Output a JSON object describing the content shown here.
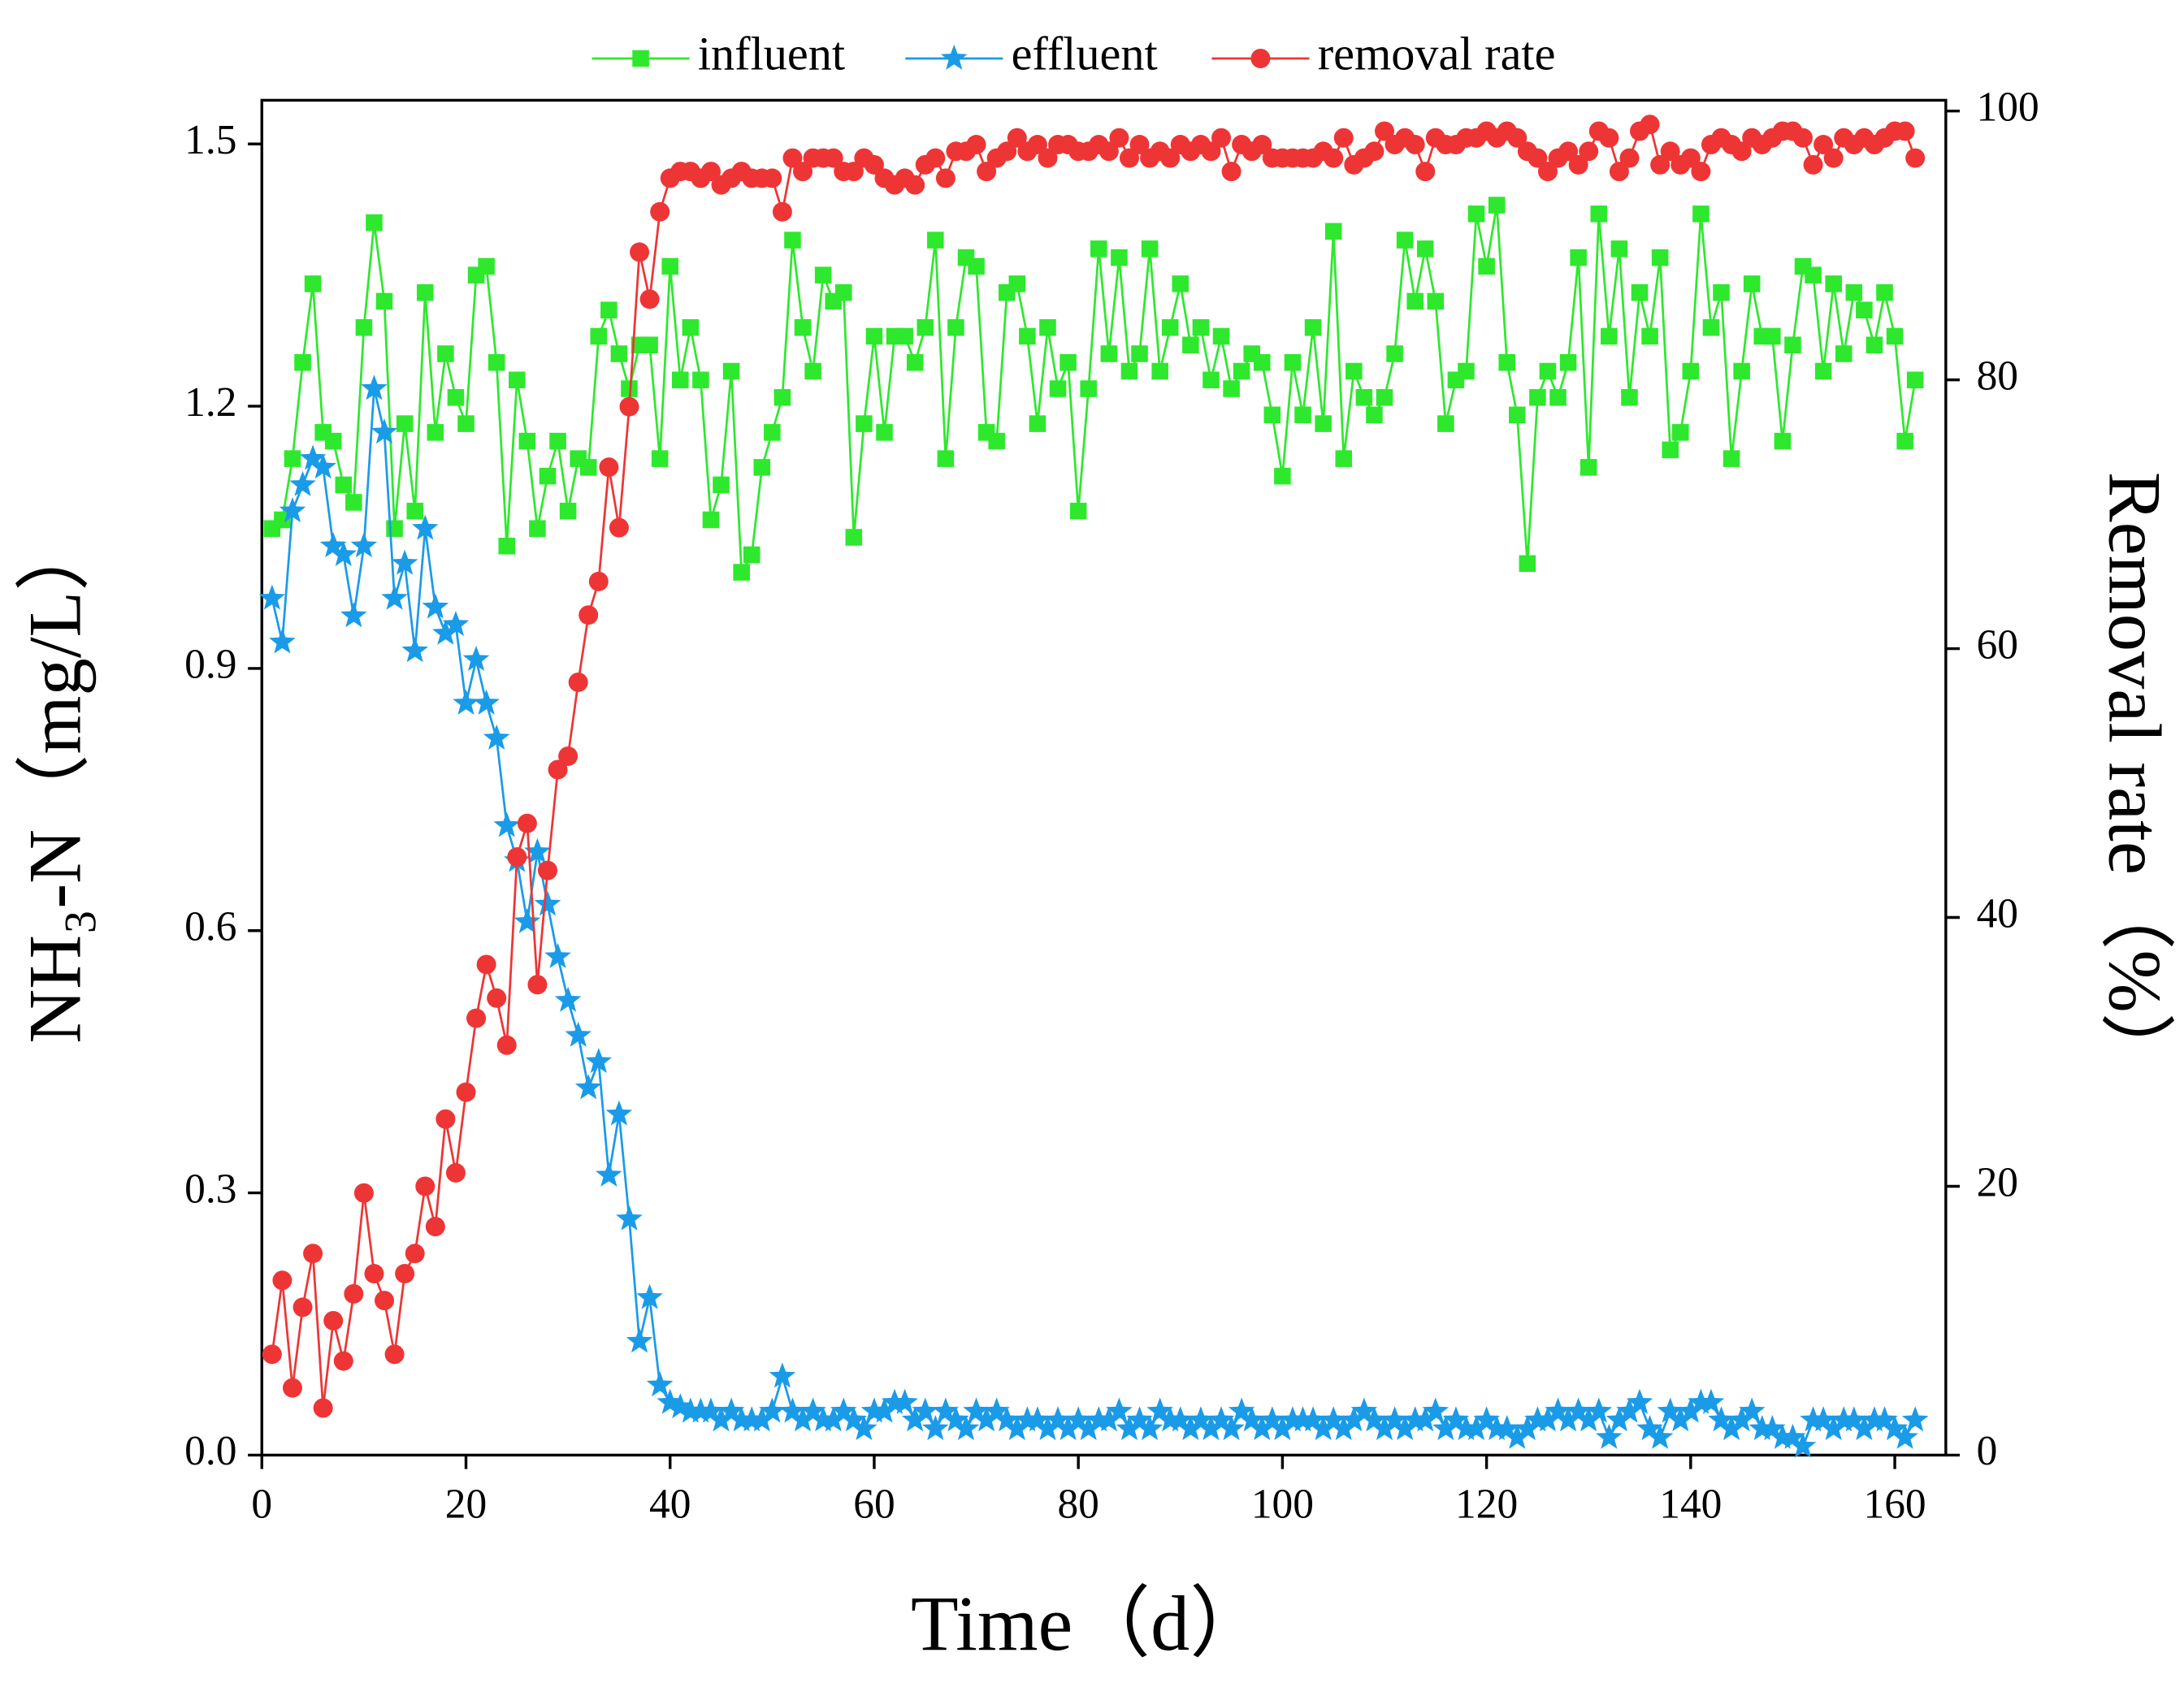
{
  "chart_data": {
    "type": "line",
    "xlabel": "Time（d）",
    "ylabel": "NH₃-N（mg/L）",
    "y2label": "Removal rate（%）",
    "xlim": [
      0,
      165
    ],
    "xticks": [
      0,
      20,
      40,
      60,
      80,
      100,
      120,
      140,
      160
    ],
    "ylim": [
      0,
      1.55
    ],
    "yticks": [
      {
        "value": 0,
        "label": "0.0"
      },
      {
        "value": 0.3,
        "label": "0.3"
      },
      {
        "value": 0.6,
        "label": "0.6"
      },
      {
        "value": 0.9,
        "label": "0.9"
      },
      {
        "value": 1.2,
        "label": "1.2"
      },
      {
        "value": 1.5,
        "label": "1.5"
      }
    ],
    "y2lim": [
      0,
      100.8
    ],
    "y2ticks": [
      0,
      20,
      40,
      60,
      80,
      100
    ],
    "legend": "top",
    "x": [
      1,
      2,
      3,
      4,
      5,
      6,
      7,
      8,
      9,
      10,
      11,
      12,
      13,
      14,
      15,
      16,
      17,
      18,
      19,
      20,
      21,
      22,
      23,
      24,
      25,
      26,
      27,
      28,
      29,
      30,
      31,
      32,
      33,
      34,
      35,
      36,
      37,
      38,
      39,
      40,
      41,
      42,
      43,
      44,
      45,
      46,
      47,
      48,
      49,
      50,
      51,
      52,
      53,
      54,
      55,
      56,
      57,
      58,
      59,
      60,
      61,
      62,
      63,
      64,
      65,
      66,
      67,
      68,
      69,
      70,
      71,
      72,
      73,
      74,
      75,
      76,
      77,
      78,
      79,
      80,
      81,
      82,
      83,
      84,
      85,
      86,
      87,
      88,
      89,
      90,
      91,
      92,
      93,
      94,
      95,
      96,
      97,
      98,
      99,
      100,
      101,
      102,
      103,
      104,
      105,
      106,
      107,
      108,
      109,
      110,
      111,
      112,
      113,
      114,
      115,
      116,
      117,
      118,
      119,
      120,
      121,
      122,
      123,
      124,
      125,
      126,
      127,
      128,
      129,
      130,
      131,
      132,
      133,
      134,
      135,
      136,
      137,
      138,
      139,
      140,
      141,
      142,
      143,
      144,
      145,
      146,
      147,
      148,
      149,
      150,
      151,
      152,
      153,
      154,
      155,
      156,
      157,
      158,
      159,
      160,
      161,
      162
    ],
    "series": [
      {
        "name": "influent",
        "color": "#2ee82e",
        "marker": "square",
        "values": [
          1.06,
          1.07,
          1.14,
          1.25,
          1.34,
          1.17,
          1.16,
          1.11,
          1.09,
          1.29,
          1.41,
          1.32,
          1.06,
          1.18,
          1.08,
          1.33,
          1.17,
          1.26,
          1.21,
          1.18,
          1.35,
          1.36,
          1.25,
          1.04,
          1.23,
          1.16,
          1.06,
          1.12,
          1.16,
          1.08,
          1.14,
          1.13,
          1.28,
          1.31,
          1.26,
          1.22,
          1.27,
          1.27,
          1.14,
          1.36,
          1.23,
          1.29,
          1.23,
          1.07,
          1.11,
          1.24,
          1.01,
          1.03,
          1.13,
          1.17,
          1.21,
          1.39,
          1.29,
          1.24,
          1.35,
          1.32,
          1.33,
          1.05,
          1.18,
          1.28,
          1.17,
          1.28,
          1.28,
          1.25,
          1.29,
          1.39,
          1.14,
          1.29,
          1.37,
          1.36,
          1.17,
          1.16,
          1.33,
          1.34,
          1.28,
          1.18,
          1.29,
          1.22,
          1.25,
          1.08,
          1.22,
          1.38,
          1.26,
          1.37,
          1.24,
          1.26,
          1.38,
          1.24,
          1.29,
          1.34,
          1.27,
          1.29,
          1.23,
          1.28,
          1.22,
          1.24,
          1.26,
          1.25,
          1.19,
          1.12,
          1.25,
          1.19,
          1.29,
          1.18,
          1.4,
          1.14,
          1.24,
          1.21,
          1.19,
          1.21,
          1.26,
          1.39,
          1.32,
          1.38,
          1.32,
          1.18,
          1.23,
          1.24,
          1.42,
          1.36,
          1.43,
          1.25,
          1.19,
          1.02,
          1.21,
          1.24,
          1.21,
          1.25,
          1.37,
          1.13,
          1.42,
          1.28,
          1.38,
          1.21,
          1.33,
          1.28,
          1.37,
          1.15,
          1.17,
          1.24,
          1.42,
          1.29,
          1.33,
          1.14,
          1.24,
          1.34,
          1.28,
          1.28,
          1.16,
          1.27,
          1.36,
          1.35,
          1.24,
          1.34,
          1.26,
          1.33,
          1.31,
          1.27,
          1.33,
          1.28,
          1.16,
          1.23
        ]
      },
      {
        "name": "effluent",
        "color": "#1a9be8",
        "marker": "star",
        "values": [
          0.98,
          0.93,
          1.08,
          1.11,
          1.14,
          1.13,
          1.04,
          1.03,
          0.96,
          1.04,
          1.22,
          1.17,
          0.98,
          1.02,
          0.92,
          1.06,
          0.97,
          0.94,
          0.95,
          0.86,
          0.91,
          0.86,
          0.82,
          0.72,
          0.68,
          0.61,
          0.69,
          0.63,
          0.57,
          0.52,
          0.48,
          0.42,
          0.45,
          0.32,
          0.39,
          0.27,
          0.13,
          0.18,
          0.08,
          0.06,
          0.055,
          0.05,
          0.05,
          0.05,
          0.04,
          0.05,
          0.04,
          0.04,
          0.04,
          0.05,
          0.09,
          0.05,
          0.04,
          0.05,
          0.04,
          0.04,
          0.05,
          0.04,
          0.03,
          0.05,
          0.05,
          0.06,
          0.06,
          0.04,
          0.05,
          0.03,
          0.05,
          0.04,
          0.03,
          0.05,
          0.04,
          0.05,
          0.04,
          0.03,
          0.04,
          0.04,
          0.03,
          0.04,
          0.03,
          0.04,
          0.03,
          0.04,
          0.04,
          0.05,
          0.03,
          0.04,
          0.03,
          0.05,
          0.04,
          0.04,
          0.03,
          0.04,
          0.03,
          0.04,
          0.03,
          0.05,
          0.04,
          0.03,
          0.04,
          0.03,
          0.04,
          0.04,
          0.04,
          0.03,
          0.04,
          0.03,
          0.04,
          0.05,
          0.04,
          0.03,
          0.04,
          0.03,
          0.04,
          0.04,
          0.05,
          0.03,
          0.04,
          0.03,
          0.03,
          0.04,
          0.03,
          0.03,
          0.02,
          0.03,
          0.04,
          0.04,
          0.05,
          0.04,
          0.05,
          0.04,
          0.05,
          0.02,
          0.04,
          0.05,
          0.06,
          0.03,
          0.02,
          0.05,
          0.04,
          0.05,
          0.06,
          0.06,
          0.04,
          0.03,
          0.04,
          0.05,
          0.03,
          0.03,
          0.02,
          0.02,
          0.01,
          0.04,
          0.04,
          0.03,
          0.04,
          0.04,
          0.03,
          0.04,
          0.04,
          0.03,
          0.02,
          0.04
        ]
      },
      {
        "name": "removal rate",
        "color": "#ee3535",
        "marker": "circle",
        "axis": "y2",
        "values": [
          7.5,
          13,
          5,
          11,
          15,
          3.5,
          10,
          7,
          12,
          19.5,
          13.5,
          11.5,
          7.5,
          13.5,
          15,
          20,
          17,
          25,
          21,
          27,
          32.5,
          36.5,
          34,
          30.5,
          44.5,
          47,
          35,
          43.5,
          51,
          52,
          57.5,
          62.5,
          65,
          73.5,
          69,
          78,
          89.5,
          86,
          92.5,
          95,
          95.5,
          95.5,
          95,
          95.5,
          94.5,
          95,
          95.5,
          95,
          95,
          95,
          92.5,
          96.5,
          95.5,
          96.5,
          96.5,
          96.5,
          95.5,
          95.5,
          96.5,
          96,
          95,
          94.5,
          95,
          94.5,
          96,
          96.5,
          95,
          97,
          97,
          97.5,
          95.5,
          96.5,
          97,
          98,
          97,
          97.5,
          96.5,
          97.5,
          97.5,
          97,
          97,
          97.5,
          97,
          98,
          96.5,
          97.5,
          96.5,
          97,
          96.5,
          97.5,
          97,
          97.5,
          97,
          98,
          95.5,
          97.5,
          97,
          97.5,
          96.5,
          96.5,
          96.5,
          96.5,
          96.5,
          97,
          96.5,
          98,
          96,
          96.5,
          97,
          98.5,
          97.5,
          98,
          97.5,
          95.5,
          98,
          97.5,
          97.5,
          98,
          98,
          98.5,
          98,
          98.5,
          98,
          97,
          96.5,
          95.5,
          96.5,
          97,
          96,
          97,
          98.5,
          98,
          95.5,
          96.5,
          98.5,
          99,
          96,
          97,
          96,
          96.5,
          95.5,
          97.5,
          98,
          97.5,
          97,
          98,
          97.5,
          98,
          98.5,
          98.5,
          98,
          96,
          97.5,
          96.5,
          98,
          97.5,
          98,
          97.5,
          98,
          98.5,
          98.5,
          96.5
        ]
      }
    ]
  }
}
